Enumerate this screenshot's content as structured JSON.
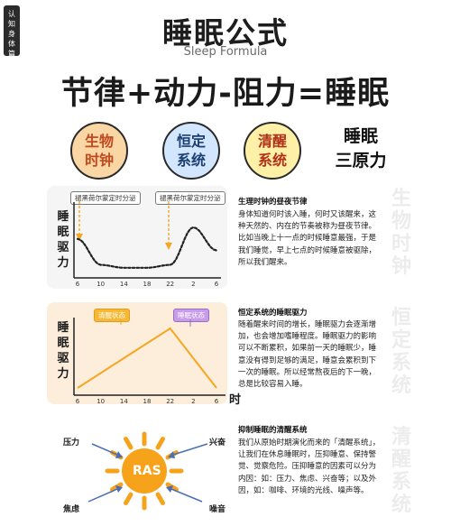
{
  "side_tag": [
    "认",
    "知",
    "身",
    "体",
    "篇"
  ],
  "title": "睡眠公式",
  "subtitle": "Sleep Formula",
  "formula": "节律+动力-阻力=睡眠",
  "principles": {
    "circle1": [
      "生物",
      "时钟"
    ],
    "circle2": [
      "恒定",
      "系统"
    ],
    "circle3": [
      "清醒",
      "系统"
    ],
    "three_principles": [
      "睡眠",
      "三原力"
    ]
  },
  "colors": {
    "orange": "#f5a623",
    "rhythm_line": "#222222",
    "circle1_fill": "#f9d6a3",
    "circle2_fill": "#d3e6ff",
    "circle3_fill": "#fff0a8",
    "ras_sun": "#f7a21b"
  },
  "panel1": {
    "ylabel": [
      "睡",
      "眠",
      "驱",
      "力"
    ],
    "xticks": [
      "6",
      "10",
      "14",
      "18",
      "22",
      "2",
      "6"
    ],
    "tag_left": "褪黑荷尔蒙定时分泌",
    "tag_right": "褪黑荷尔蒙定时分泌",
    "heading": "生理时钟的昼夜节律",
    "text": "身体知道何时该入睡，何时又该醒来，这种天然的、内在的节奏被称为昼夜节律。比如当晚上十一点的时候睡意最强，于是我们睡觉，早上七点的时候睡意被驱除，所以我们醒来。",
    "watermark": [
      "生",
      "物",
      "时",
      "钟"
    ]
  },
  "panel2": {
    "ylabel": [
      "睡",
      "眠",
      "驱",
      "力"
    ],
    "xticks": [
      "6",
      "10",
      "14",
      "18",
      "22",
      "2",
      "6"
    ],
    "xlabel": "时",
    "tag_left": "清醒状态",
    "tag_right": "睡眠状态",
    "heading": "恒定系统的睡眠驱力",
    "text": "随着醒来时间的增长，睡眠驱力会逐渐增加，也会增加嗜睡程度。睡眠驱力的影响可以不断累积，如果前一天的睡眠少，睡意没有得到足够的满足，睡意会累积到下一次的睡眠。所以经常熬夜后的下一晚，总是比较容易入睡。",
    "watermark": [
      "恒",
      "定",
      "系",
      "统"
    ]
  },
  "panel3": {
    "center": "RAS",
    "factors": [
      "压力",
      "兴奋",
      "焦虑",
      "噪音"
    ],
    "heading": "抑制睡眠的清醒系统",
    "text": "我们从原始时期演化而来的「清醒系统」，让我们在休息睡眠时，压抑睡意、保持警觉、觉察危险。压抑睡意的因素可以分为内因：如：压力、焦虑、兴奋等；以及外因，如：咖啡、环境的光线、噪声等。",
    "watermark": [
      "清",
      "醒",
      "系",
      "统"
    ]
  },
  "chart_data": [
    {
      "type": "line",
      "title": "生理时钟的昼夜节律",
      "x": [
        "6",
        "10",
        "14",
        "18",
        "22",
        "2",
        "6"
      ],
      "series": [
        {
          "values": [
            0.55,
            0.1,
            0.05,
            0.05,
            0.1,
            0.75,
            0.35
          ]
        }
      ],
      "ylabel": "睡眠驱力",
      "xlabel": "",
      "grid": false
    },
    {
      "type": "line",
      "title": "恒定系统的睡眠驱力",
      "x": [
        "6",
        "10",
        "14",
        "18",
        "22",
        "2",
        "6"
      ],
      "series": [
        {
          "values": [
            0.0,
            0.25,
            0.5,
            0.75,
            1.0,
            0.5,
            0.0
          ]
        }
      ],
      "ylabel": "睡眠驱力",
      "xlabel": "时",
      "grid": false
    }
  ]
}
